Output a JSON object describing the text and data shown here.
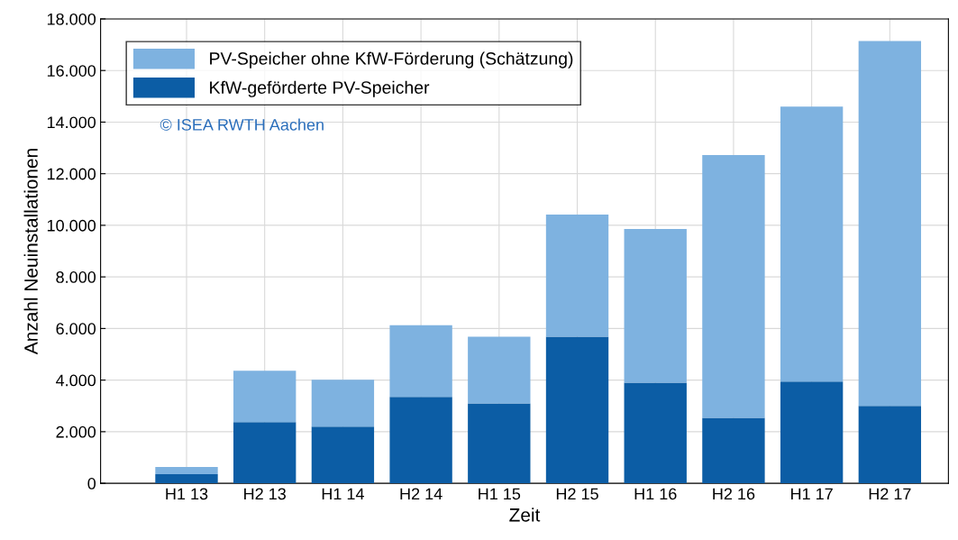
{
  "chart_data": {
    "type": "bar",
    "stacked": true,
    "xlabel": "Zeit",
    "ylabel": "Anzahl Neuinstallationen",
    "categories": [
      "H1 13",
      "H2 13",
      "H1 14",
      "H2 14",
      "H1 15",
      "H2 15",
      "H1 16",
      "H2 16",
      "H1 17",
      "H2 17"
    ],
    "series": [
      {
        "name": "KfW-geförderte PV-Speicher",
        "color": "#0c5da5",
        "values": [
          350,
          2370,
          2200,
          3350,
          3100,
          5680,
          3900,
          2540,
          3940,
          3000
        ]
      },
      {
        "name": "PV-Speicher ohne KfW-Förderung (Schätzung)",
        "color": "#7eb2e0",
        "values": [
          280,
          1990,
          1810,
          2780,
          2580,
          4740,
          5960,
          10180,
          10660,
          14140
        ]
      }
    ],
    "ylim": [
      0,
      18000
    ],
    "yticks": [
      0,
      {
        "value": 2000,
        "label": "2.000"
      },
      {
        "value": 4000,
        "label": "4.000"
      },
      {
        "value": 6000,
        "label": "6.000"
      },
      {
        "value": 8000,
        "label": "8.000"
      },
      {
        "value": 10000,
        "label": "10.000"
      },
      {
        "value": 12000,
        "label": "12.000"
      },
      {
        "value": 14000,
        "label": "14.000"
      },
      {
        "value": 16000,
        "label": "16.000"
      },
      {
        "value": 18000,
        "label": "18.000"
      }
    ],
    "grid": true,
    "legend": "top left",
    "annotations": [
      "© ISEA RWTH Aachen"
    ]
  }
}
